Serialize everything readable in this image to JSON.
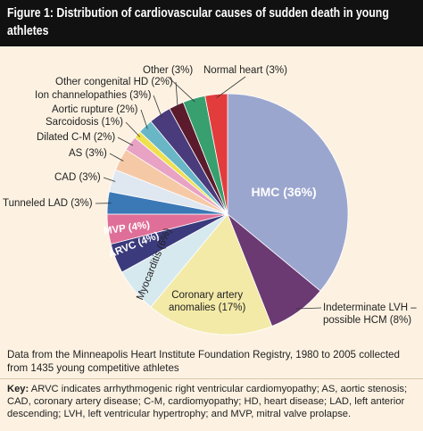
{
  "chart_data": {
    "type": "pie",
    "title": "Figure 1: Distribution of cardiovascular causes of sudden death in young athletes",
    "categories": [
      "HMC (36%)",
      "Indeterminate LVH –\npossible HCM (8%)",
      "Coronary artery\nanomalies (17%)",
      "Myocarditis (6%)",
      "ARVC (4%)",
      "MVP (4%)",
      "Tunneled LAD (3%)",
      "CAD (3%)",
      "AS (3%)",
      "Dilated C-M (2%)",
      "Sarcoidosis (1%)",
      "Aortic rupture (2%)",
      "Ion channelopathies (3%)",
      "Other congenital HD (2%)",
      "Other (3%)",
      "Normal heart (3%)"
    ],
    "values": [
      36,
      8,
      17,
      6,
      4,
      4,
      3,
      3,
      3,
      2,
      1,
      2,
      3,
      2,
      3,
      3
    ],
    "colors": [
      "#9ba6cf",
      "#6b3a72",
      "#f3eaa8",
      "#d6e9ef",
      "#3b3a7c",
      "#df6f98",
      "#3b78b6",
      "#dfe7f1",
      "#f6c9a6",
      "#e8a2c4",
      "#efe04e",
      "#69b7c6",
      "#4a3b7c",
      "#5b1b2c",
      "#38a06e",
      "#e23c3c"
    ],
    "source": "Data from the Minneapolis Heart Institute Foundation Registry, 1980 to 2005 collected from 1435 young competitive athletes",
    "key_label": "Key:",
    "key_text": "ARVC indicates arrhythmogenic right ventricular cardiomyopathy; AS, aortic stenosis; CAD, coronary artery disease; C-M, cardiomyopathy; HD, heart disease; LAD, left anterior descending; LVH, left ventricular hypertrophy; and MVP, mitral valve prolapse."
  }
}
